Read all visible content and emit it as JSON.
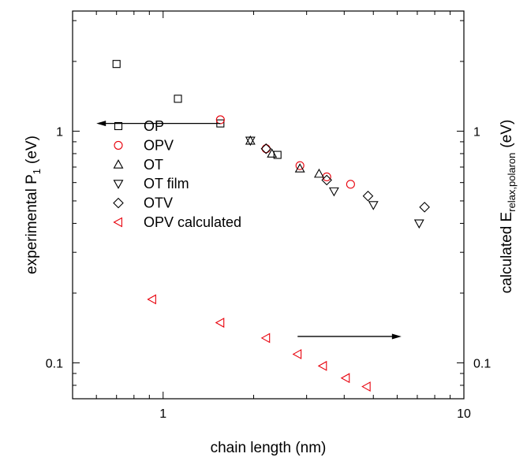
{
  "chart_data": {
    "type": "scatter",
    "xlabel": "chain length (nm)",
    "ylabel_left": "experimental P",
    "ylabel_left_sub": "1",
    "ylabel_left_unit": "(eV)",
    "ylabel_right": "calculated E",
    "ylabel_right_sub": "relax,polaron",
    "ylabel_right_unit": "(eV)",
    "x_scale": "log",
    "y_scale": "log",
    "xlim": [
      0.5,
      10
    ],
    "ylim": [
      0.07,
      3.3
    ],
    "x_tick_labels": [
      {
        "value": 1,
        "label": "1"
      },
      {
        "value": 10,
        "label": "10"
      }
    ],
    "y_tick_labels": [
      {
        "value": 0.1,
        "label": "0.1"
      },
      {
        "value": 1,
        "label": "1"
      }
    ],
    "grid": false,
    "legend_position": "upper-left",
    "series": [
      {
        "name": "OP",
        "marker": "square",
        "color": "#000000",
        "axis": "left",
        "points": [
          [
            0.7,
            1.95
          ],
          [
            1.12,
            1.38
          ],
          [
            1.55,
            1.08
          ],
          [
            2.4,
            0.79
          ]
        ]
      },
      {
        "name": "OPV",
        "marker": "circle",
        "color": "#e8000b",
        "axis": "left",
        "points": [
          [
            1.55,
            1.12
          ],
          [
            2.2,
            0.84
          ],
          [
            2.85,
            0.71
          ],
          [
            3.5,
            0.635
          ],
          [
            4.2,
            0.59
          ]
        ]
      },
      {
        "name": "OT",
        "marker": "triangle-up",
        "color": "#000000",
        "axis": "left",
        "points": [
          [
            1.95,
            0.91
          ],
          [
            2.3,
            0.8
          ],
          [
            2.85,
            0.69
          ],
          [
            3.3,
            0.655
          ]
        ]
      },
      {
        "name": "OT film",
        "marker": "triangle-down",
        "color": "#000000",
        "axis": "left",
        "points": [
          [
            1.95,
            0.91
          ],
          [
            3.7,
            0.55
          ],
          [
            5.0,
            0.48
          ],
          [
            7.1,
            0.4
          ]
        ]
      },
      {
        "name": "OTV",
        "marker": "diamond",
        "color": "#000000",
        "axis": "left",
        "points": [
          [
            2.2,
            0.84
          ],
          [
            3.5,
            0.615
          ],
          [
            4.8,
            0.525
          ],
          [
            7.4,
            0.47
          ]
        ]
      },
      {
        "name": "OPV calculated",
        "marker": "triangle-left",
        "color": "#e8000b",
        "axis": "right",
        "points": [
          [
            0.92,
            0.188
          ],
          [
            1.55,
            0.149
          ],
          [
            2.2,
            0.128
          ],
          [
            2.8,
            0.109
          ],
          [
            3.4,
            0.097
          ],
          [
            4.05,
            0.086
          ],
          [
            4.75,
            0.079
          ]
        ]
      }
    ],
    "arrows": [
      {
        "points_to": "left axis",
        "from": [
          1.55,
          1.08
        ],
        "to": [
          0.6,
          1.08
        ]
      },
      {
        "points_to": "right axis",
        "from": [
          2.8,
          0.13
        ],
        "to": [
          6.2,
          0.13
        ]
      }
    ]
  }
}
